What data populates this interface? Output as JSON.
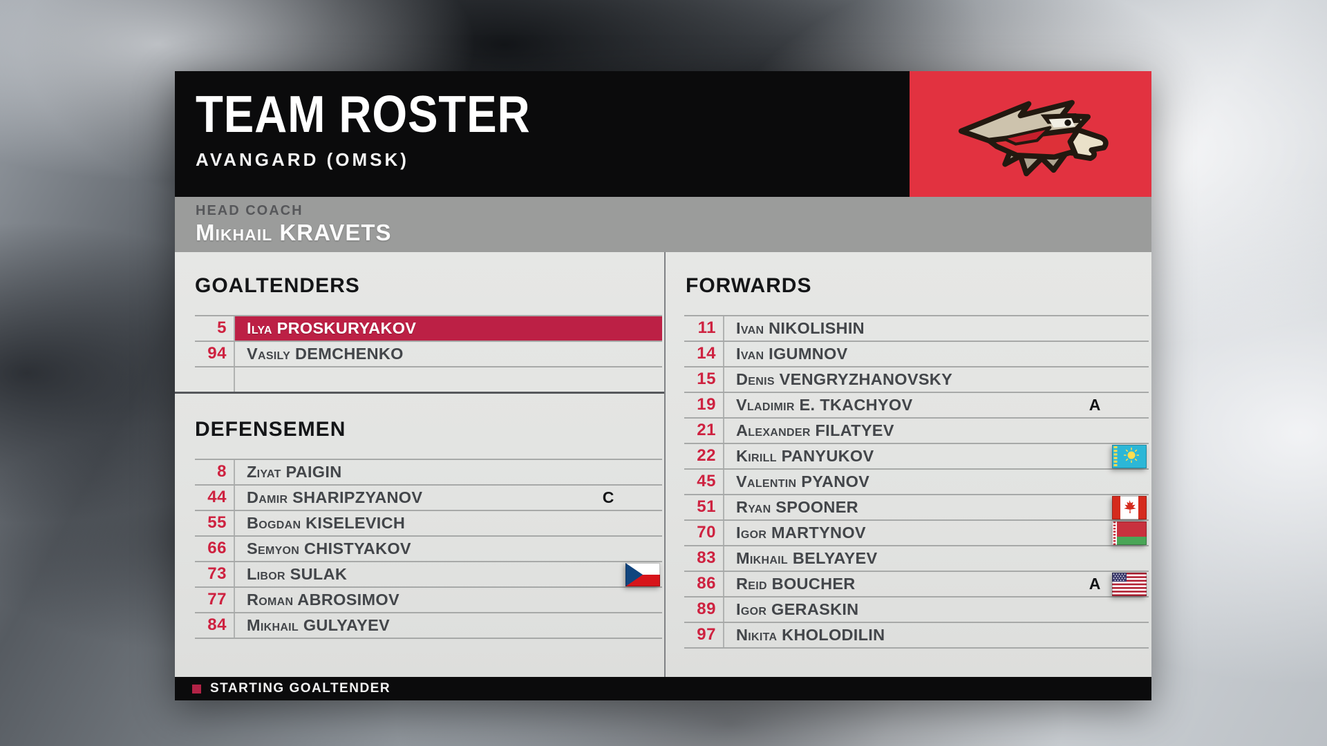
{
  "header": {
    "title": "TEAM ROSTER",
    "subtitle": "AVANGARD (OMSK)"
  },
  "coach": {
    "label": "HEAD COACH",
    "name": "Mikhail KRAVETS"
  },
  "sections": {
    "goaltenders": {
      "title": "GOALTENDERS",
      "empty_rows": 1,
      "players": [
        {
          "number": "5",
          "name": "Ilya PROSKURYAKOV",
          "starting": true
        },
        {
          "number": "94",
          "name": "Vasily DEMCHENKO"
        }
      ]
    },
    "defensemen": {
      "title": "DEFENSEMEN",
      "empty_rows": 0,
      "players": [
        {
          "number": "8",
          "name": "Ziyat PAIGIN"
        },
        {
          "number": "44",
          "name": "Damir SHARIPZYANOV",
          "badge": "C"
        },
        {
          "number": "55",
          "name": "Bogdan KISELEVICH"
        },
        {
          "number": "66",
          "name": "Semyon CHISTYAKOV"
        },
        {
          "number": "73",
          "name": "Libor SULAK",
          "flag": "czech-republic"
        },
        {
          "number": "77",
          "name": "Roman ABROSIMOV"
        },
        {
          "number": "84",
          "name": "Mikhail GULYAYEV"
        }
      ]
    },
    "forwards": {
      "title": "FORWARDS",
      "empty_rows": 0,
      "players": [
        {
          "number": "11",
          "name": "Ivan NIKOLISHIN"
        },
        {
          "number": "14",
          "name": "Ivan IGUMNOV"
        },
        {
          "number": "15",
          "name": "Denis VENGRYZHANOVSKY"
        },
        {
          "number": "19",
          "name": "Vladimir E. TKACHYOV",
          "badge": "A"
        },
        {
          "number": "21",
          "name": "Alexander FILATYEV"
        },
        {
          "number": "22",
          "name": "Kirill PANYUKOV",
          "flag": "kazakhstan"
        },
        {
          "number": "45",
          "name": "Valentin PYANOV"
        },
        {
          "number": "51",
          "name": "Ryan SPOONER",
          "flag": "canada"
        },
        {
          "number": "70",
          "name": "Igor MARTYNOV",
          "flag": "belarus"
        },
        {
          "number": "83",
          "name": "Mikhail BELYAYEV"
        },
        {
          "number": "86",
          "name": "Reid BOUCHER",
          "badge": "A",
          "flag": "usa"
        },
        {
          "number": "89",
          "name": "Igor GERASKIN"
        },
        {
          "number": "97",
          "name": "Nikita KHOLODILIN"
        }
      ]
    }
  },
  "legend": {
    "label": "STARTING GOALTENDER"
  },
  "icons": {
    "logo": "avangard-hawk-logo",
    "starting_marker": "starting-goaltender-marker"
  },
  "colors": {
    "accent-red": "#E23240",
    "highlight-row": "#BC2045",
    "number-red": "#CE2240",
    "legend-red": "#B22346",
    "bar-black": "#0B0B0C",
    "coach-gray": "#9B9C9B",
    "name-gray": "#43464A",
    "line-gray": "#A7A9A8",
    "dark-line": "#55575B"
  }
}
